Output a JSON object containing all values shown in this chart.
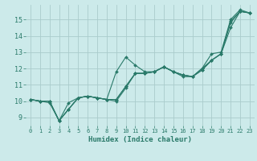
{
  "xlabel": "Humidex (Indice chaleur)",
  "bg_color": "#cceaea",
  "grid_color": "#aacccc",
  "line_color": "#2a7a6a",
  "xlim": [
    -0.5,
    23.5
  ],
  "ylim": [
    8.5,
    15.9
  ],
  "yticks": [
    9,
    10,
    11,
    12,
    13,
    14,
    15
  ],
  "xticks": [
    0,
    1,
    2,
    3,
    4,
    5,
    6,
    7,
    8,
    9,
    10,
    11,
    12,
    13,
    14,
    15,
    16,
    17,
    18,
    19,
    20,
    21,
    22,
    23
  ],
  "lines": [
    {
      "x": [
        0,
        1,
        2,
        3,
        4,
        5,
        6,
        7,
        8,
        9,
        10,
        11,
        12,
        13,
        14,
        15,
        16,
        17,
        18,
        19,
        20,
        21,
        22,
        23
      ],
      "y": [
        10.1,
        10.0,
        10.0,
        8.8,
        9.5,
        10.2,
        10.3,
        10.2,
        10.1,
        11.8,
        12.7,
        12.2,
        11.8,
        11.8,
        12.1,
        11.8,
        11.6,
        11.5,
        12.0,
        12.9,
        13.0,
        15.0,
        15.6,
        15.4
      ]
    },
    {
      "x": [
        0,
        1,
        2,
        3,
        4,
        5,
        6,
        7,
        8,
        9,
        10,
        11,
        12,
        13,
        14,
        15,
        16,
        17,
        18,
        19,
        20,
        21,
        22,
        23
      ],
      "y": [
        10.1,
        10.0,
        9.9,
        8.8,
        9.9,
        10.2,
        10.3,
        10.2,
        10.1,
        10.0,
        10.8,
        11.7,
        11.7,
        11.8,
        12.1,
        11.8,
        11.6,
        11.5,
        11.9,
        12.5,
        12.9,
        14.9,
        15.5,
        15.4
      ]
    },
    {
      "x": [
        0,
        1,
        2,
        3,
        4,
        5,
        6,
        7,
        8,
        9,
        10,
        11,
        12,
        13,
        14,
        15,
        16,
        17,
        18,
        19,
        20,
        21,
        22,
        23
      ],
      "y": [
        10.1,
        10.0,
        10.0,
        8.8,
        9.5,
        10.2,
        10.3,
        10.2,
        10.1,
        10.1,
        10.9,
        11.7,
        11.7,
        11.8,
        12.1,
        11.8,
        11.6,
        11.5,
        12.0,
        12.5,
        12.9,
        14.5,
        15.5,
        15.4
      ]
    },
    {
      "x": [
        0,
        1,
        2,
        3,
        4,
        5,
        6,
        7,
        8,
        9,
        10,
        11,
        12,
        13,
        14,
        15,
        16,
        17,
        18,
        19,
        20,
        21,
        22,
        23
      ],
      "y": [
        10.1,
        10.0,
        10.0,
        8.8,
        9.5,
        10.2,
        10.3,
        10.2,
        10.1,
        10.1,
        10.9,
        11.7,
        11.7,
        11.8,
        12.1,
        11.8,
        11.5,
        11.5,
        11.9,
        12.5,
        12.9,
        14.8,
        15.5,
        15.4
      ]
    }
  ]
}
